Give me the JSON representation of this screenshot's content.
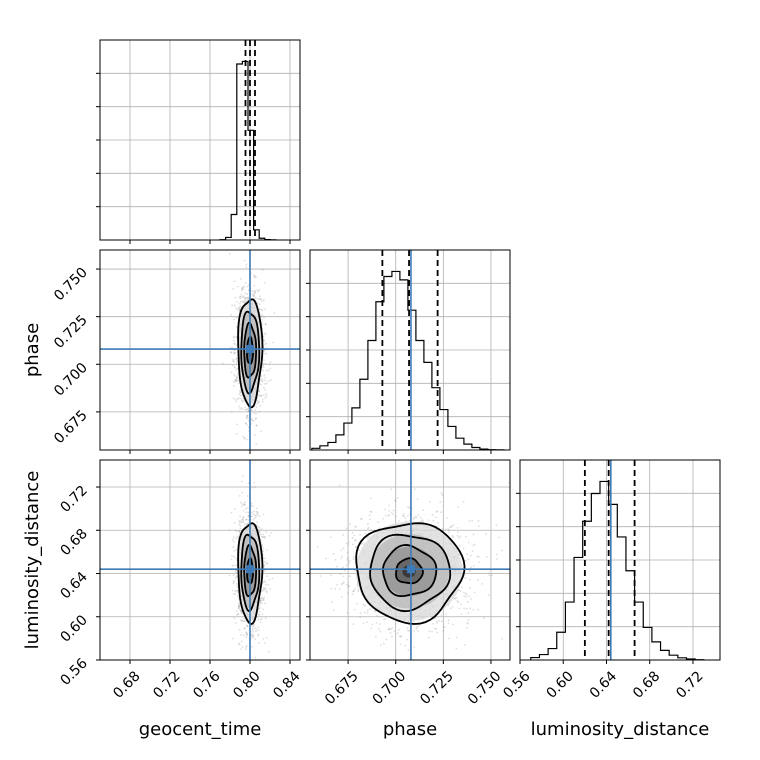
{
  "chart_data": {
    "type": "corner",
    "parameters": [
      {
        "name": "geocent_time",
        "label": "geocent_time",
        "range": [
          0.65,
          0.85
        ],
        "ticks": [
          0.68,
          0.72,
          0.76,
          0.8,
          0.84
        ],
        "tick_labels": [
          "0.68",
          "0.72",
          "0.76",
          "0.80",
          "0.84"
        ],
        "truth": 0.8,
        "mean": 0.8,
        "std": 0.006
      },
      {
        "name": "phase",
        "label": "phase",
        "range": [
          0.655,
          0.76
        ],
        "ticks": [
          0.675,
          0.7,
          0.725,
          0.75
        ],
        "tick_labels": [
          "0.675",
          "0.700",
          "0.725",
          "0.750"
        ],
        "truth": 0.708,
        "mean": 0.707,
        "std": 0.014
      },
      {
        "name": "luminosity_distance",
        "label": "luminosity_distance",
        "range": [
          0.56,
          0.745
        ],
        "ticks": [
          0.56,
          0.6,
          0.64,
          0.68,
          0.72
        ],
        "tick_labels": [
          "0.56",
          "0.60",
          "0.64",
          "0.68",
          "0.72"
        ],
        "truth": 0.644,
        "mean": 0.642,
        "std": 0.023
      }
    ],
    "histograms": [
      {
        "parameter": "geocent_time",
        "bin_edges": [
          0.77,
          0.7756,
          0.7812,
          0.7868,
          0.7924,
          0.798,
          0.8036,
          0.8092,
          0.8148,
          0.8204,
          0.826
        ],
        "counts": [
          2,
          20,
          200,
          1380,
          1400,
          860,
          80,
          14,
          3,
          1
        ],
        "quantiles": [
          0.7955,
          0.8,
          0.805
        ]
      },
      {
        "parameter": "phase",
        "bin_edges": [
          0.656,
          0.6602,
          0.6644,
          0.6686,
          0.6728,
          0.677,
          0.6812,
          0.6854,
          0.6896,
          0.6938,
          0.698,
          0.7022,
          0.7064,
          0.7106,
          0.7148,
          0.719,
          0.7232,
          0.7274,
          0.7316,
          0.7358,
          0.74,
          0.7442,
          0.7484,
          0.7526,
          0.7568
        ],
        "counts": [
          10,
          25,
          45,
          90,
          160,
          250,
          420,
          650,
          880,
          1030,
          1060,
          1010,
          830,
          650,
          520,
          370,
          240,
          140,
          70,
          35,
          15,
          5,
          2,
          1
        ],
        "quantiles": [
          0.693,
          0.707,
          0.722
        ]
      },
      {
        "parameter": "luminosity_distance",
        "bin_edges": [
          0.57,
          0.578,
          0.586,
          0.594,
          0.602,
          0.61,
          0.618,
          0.626,
          0.634,
          0.642,
          0.65,
          0.658,
          0.666,
          0.674,
          0.682,
          0.69,
          0.698,
          0.706,
          0.714,
          0.722,
          0.73
        ],
        "counts": [
          20,
          45,
          95,
          230,
          480,
          850,
          1150,
          1380,
          1480,
          1290,
          1020,
          740,
          480,
          270,
          150,
          80,
          40,
          18,
          8,
          2
        ],
        "quantiles": [
          0.62,
          0.642,
          0.666
        ]
      }
    ],
    "grid": true,
    "xlabel_bottom": [
      "geocent_time",
      "phase",
      "luminosity_distance"
    ],
    "ylabel_left": [
      "phase",
      "luminosity_distance"
    ]
  }
}
